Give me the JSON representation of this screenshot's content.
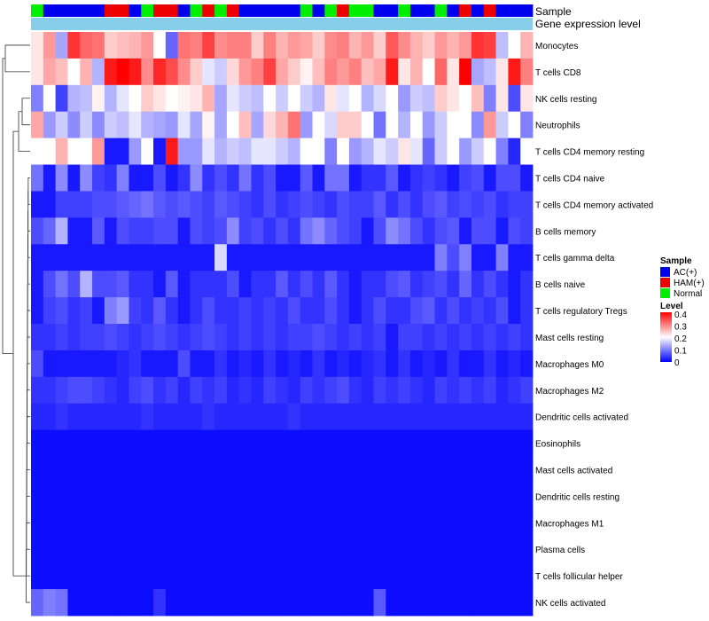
{
  "chart_data": {
    "type": "heatmap",
    "annotation_tracks": [
      "Sample",
      "Gene expression level"
    ],
    "rows": [
      "Monocytes",
      "T cells CD8",
      "NK cells resting",
      "Neutrophils",
      "T cells CD4 memory resting",
      "T cells CD4 naive",
      "T cells CD4 memory activated",
      "B cells memory",
      "T cells gamma delta",
      "B cells naive",
      "T cells regulatory  Tregs",
      "Mast cells resting",
      "Macrophages M0",
      "Macrophages M2",
      "Dendritic cells activated",
      "Eosinophils",
      "Mast cells activated",
      "Dendritic cells resting",
      "Macrophages M1",
      "Plasma cells",
      "T cells follicular helper",
      "NK cells activated"
    ],
    "samples": [
      "N",
      "A",
      "A",
      "A",
      "A",
      "A",
      "H",
      "H",
      "A",
      "N",
      "H",
      "H",
      "A",
      "N",
      "H",
      "N",
      "H",
      "A",
      "A",
      "A",
      "A",
      "A",
      "N",
      "A",
      "N",
      "H",
      "N",
      "N",
      "A",
      "A",
      "N",
      "A",
      "A",
      "N",
      "A",
      "H",
      "A",
      "H",
      "A",
      "A",
      "A"
    ],
    "values": [
      [
        0.22,
        0.28,
        0.13,
        0.36,
        0.32,
        0.31,
        0.24,
        0.25,
        0.26,
        0.28,
        0.2,
        0.08,
        0.31,
        0.3,
        0.35,
        0.29,
        0.3,
        0.3,
        0.24,
        0.3,
        0.26,
        0.28,
        0.27,
        0.24,
        0.29,
        0.3,
        0.26,
        0.28,
        0.24,
        0.33,
        0.29,
        0.26,
        0.24,
        0.28,
        0.26,
        0.28,
        0.36,
        0.35,
        0.15,
        0.2,
        0.26
      ],
      [
        0.22,
        0.27,
        0.25,
        0.2,
        0.26,
        0.14,
        0.38,
        0.4,
        0.38,
        0.29,
        0.37,
        0.34,
        0.29,
        0.24,
        0.18,
        0.16,
        0.23,
        0.28,
        0.3,
        0.35,
        0.27,
        0.24,
        0.21,
        0.25,
        0.3,
        0.28,
        0.3,
        0.25,
        0.27,
        0.38,
        0.22,
        0.26,
        0.2,
        0.32,
        0.22,
        0.4,
        0.13,
        0.15,
        0.22,
        0.38,
        0.3
      ],
      [
        0.1,
        0.2,
        0.05,
        0.14,
        0.15,
        0.21,
        0.14,
        0.18,
        0.2,
        0.24,
        0.22,
        0.2,
        0.21,
        0.22,
        0.26,
        0.13,
        0.18,
        0.16,
        0.15,
        0.2,
        0.16,
        0.2,
        0.16,
        0.14,
        0.22,
        0.18,
        0.2,
        0.14,
        0.17,
        0.2,
        0.12,
        0.16,
        0.15,
        0.24,
        0.22,
        0.2,
        0.25,
        0.1,
        0.22,
        0.06,
        0.22
      ],
      [
        0.27,
        0.12,
        0.16,
        0.11,
        0.16,
        0.11,
        0.16,
        0.15,
        0.18,
        0.14,
        0.13,
        0.12,
        0.18,
        0.13,
        0.21,
        0.13,
        0.2,
        0.25,
        0.13,
        0.23,
        0.26,
        0.31,
        0.12,
        0.2,
        0.17,
        0.24,
        0.24,
        0.2,
        0.09,
        0.2,
        0.14,
        0.2,
        0.12,
        0.16,
        0.2,
        0.2,
        0.11,
        0.28,
        0.16,
        0.2,
        0.1
      ],
      [
        0.2,
        0.2,
        0.26,
        0.2,
        0.2,
        0.28,
        0.02,
        0.02,
        0.12,
        0.2,
        0.02,
        0.38,
        0.12,
        0.12,
        0.18,
        0.14,
        0.16,
        0.15,
        0.18,
        0.18,
        0.16,
        0.14,
        0.2,
        0.2,
        0.1,
        0.2,
        0.12,
        0.14,
        0.18,
        0.16,
        0.22,
        0.18,
        0.08,
        0.16,
        0.2,
        0.12,
        0.16,
        0.2,
        0.1,
        0.03,
        0.2
      ],
      [
        0.09,
        0.02,
        0.11,
        0.02,
        0.11,
        0.05,
        0.04,
        0.1,
        0.02,
        0.02,
        0.06,
        0.02,
        0.04,
        0.11,
        0.04,
        0.06,
        0.04,
        0.09,
        0.04,
        0.06,
        0.02,
        0.02,
        0.07,
        0.02,
        0.09,
        0.09,
        0.02,
        0.04,
        0.04,
        0.07,
        0.02,
        0.04,
        0.05,
        0.04,
        0.02,
        0.05,
        0.06,
        0.02,
        0.06,
        0.06,
        0.02
      ],
      [
        0.02,
        0.02,
        0.05,
        0.05,
        0.05,
        0.06,
        0.06,
        0.07,
        0.08,
        0.09,
        0.07,
        0.06,
        0.07,
        0.06,
        0.05,
        0.07,
        0.06,
        0.05,
        0.04,
        0.06,
        0.04,
        0.05,
        0.06,
        0.05,
        0.04,
        0.06,
        0.05,
        0.05,
        0.07,
        0.04,
        0.06,
        0.04,
        0.06,
        0.07,
        0.05,
        0.06,
        0.05,
        0.06,
        0.04,
        0.05,
        0.05
      ],
      [
        0.06,
        0.08,
        0.14,
        0.02,
        0.02,
        0.07,
        0.02,
        0.06,
        0.05,
        0.05,
        0.06,
        0.06,
        0.02,
        0.06,
        0.05,
        0.06,
        0.11,
        0.05,
        0.06,
        0.04,
        0.06,
        0.04,
        0.09,
        0.11,
        0.08,
        0.06,
        0.05,
        0.02,
        0.06,
        0.11,
        0.09,
        0.06,
        0.04,
        0.06,
        0.07,
        0.02,
        0.06,
        0.06,
        0.02,
        0.06,
        0.05
      ],
      [
        0.02,
        0.02,
        0.02,
        0.02,
        0.02,
        0.02,
        0.02,
        0.02,
        0.02,
        0.02,
        0.02,
        0.02,
        0.02,
        0.02,
        0.02,
        0.17,
        0.02,
        0.02,
        0.02,
        0.02,
        0.02,
        0.02,
        0.02,
        0.02,
        0.02,
        0.02,
        0.02,
        0.02,
        0.02,
        0.02,
        0.02,
        0.02,
        0.02,
        0.1,
        0.06,
        0.1,
        0.02,
        0.02,
        0.1,
        0.02,
        0.02
      ],
      [
        0.02,
        0.06,
        0.09,
        0.06,
        0.14,
        0.06,
        0.06,
        0.07,
        0.04,
        0.04,
        0.02,
        0.07,
        0.02,
        0.04,
        0.04,
        0.04,
        0.06,
        0.02,
        0.04,
        0.04,
        0.07,
        0.04,
        0.06,
        0.04,
        0.07,
        0.04,
        0.02,
        0.04,
        0.04,
        0.06,
        0.07,
        0.04,
        0.05,
        0.06,
        0.04,
        0.08,
        0.04,
        0.06,
        0.04,
        0.02,
        0.04
      ],
      [
        0.02,
        0.05,
        0.06,
        0.04,
        0.05,
        0.02,
        0.1,
        0.12,
        0.05,
        0.04,
        0.07,
        0.04,
        0.02,
        0.04,
        0.06,
        0.04,
        0.04,
        0.05,
        0.04,
        0.05,
        0.04,
        0.06,
        0.04,
        0.04,
        0.06,
        0.04,
        0.02,
        0.04,
        0.06,
        0.04,
        0.04,
        0.06,
        0.07,
        0.04,
        0.06,
        0.04,
        0.05,
        0.04,
        0.06,
        0.02,
        0.04
      ],
      [
        0.04,
        0.04,
        0.05,
        0.04,
        0.05,
        0.05,
        0.06,
        0.05,
        0.04,
        0.05,
        0.06,
        0.05,
        0.04,
        0.05,
        0.06,
        0.05,
        0.04,
        0.05,
        0.04,
        0.05,
        0.04,
        0.05,
        0.05,
        0.06,
        0.05,
        0.04,
        0.05,
        0.04,
        0.05,
        0.02,
        0.05,
        0.05,
        0.04,
        0.05,
        0.04,
        0.05,
        0.04,
        0.05,
        0.04,
        0.05,
        0.04
      ],
      [
        0.06,
        0.02,
        0.02,
        0.02,
        0.02,
        0.02,
        0.02,
        0.03,
        0.04,
        0.02,
        0.02,
        0.02,
        0.06,
        0.02,
        0.02,
        0.04,
        0.02,
        0.03,
        0.02,
        0.04,
        0.02,
        0.03,
        0.02,
        0.04,
        0.02,
        0.03,
        0.02,
        0.03,
        0.04,
        0.02,
        0.04,
        0.02,
        0.03,
        0.02,
        0.04,
        0.02,
        0.02,
        0.04,
        0.02,
        0.03,
        0.02
      ],
      [
        0.04,
        0.04,
        0.05,
        0.06,
        0.06,
        0.05,
        0.04,
        0.03,
        0.05,
        0.06,
        0.04,
        0.05,
        0.03,
        0.05,
        0.04,
        0.05,
        0.03,
        0.04,
        0.03,
        0.05,
        0.04,
        0.03,
        0.05,
        0.04,
        0.05,
        0.06,
        0.04,
        0.03,
        0.05,
        0.04,
        0.05,
        0.04,
        0.03,
        0.05,
        0.04,
        0.05,
        0.04,
        0.05,
        0.03,
        0.04,
        0.05
      ],
      [
        0.03,
        0.03,
        0.04,
        0.03,
        0.03,
        0.03,
        0.03,
        0.03,
        0.03,
        0.04,
        0.03,
        0.03,
        0.03,
        0.03,
        0.04,
        0.03,
        0.03,
        0.03,
        0.03,
        0.03,
        0.03,
        0.04,
        0.03,
        0.03,
        0.03,
        0.03,
        0.03,
        0.03,
        0.03,
        0.03,
        0.03,
        0.03,
        0.03,
        0.03,
        0.03,
        0.03,
        0.03,
        0.03,
        0.03,
        0.03,
        0.03
      ],
      [
        0.01,
        0.01,
        0.01,
        0.01,
        0.01,
        0.01,
        0.01,
        0.01,
        0.01,
        0.01,
        0.01,
        0.01,
        0.01,
        0.01,
        0.01,
        0.01,
        0.01,
        0.01,
        0.01,
        0.01,
        0.01,
        0.01,
        0.01,
        0.01,
        0.01,
        0.01,
        0.01,
        0.01,
        0.01,
        0.01,
        0.01,
        0.01,
        0.01,
        0.01,
        0.01,
        0.01,
        0.01,
        0.01,
        0.01,
        0.01,
        0.01
      ],
      [
        0.01,
        0.01,
        0.01,
        0.01,
        0.01,
        0.01,
        0.01,
        0.01,
        0.01,
        0.01,
        0.01,
        0.01,
        0.01,
        0.01,
        0.01,
        0.01,
        0.01,
        0.01,
        0.01,
        0.01,
        0.01,
        0.01,
        0.01,
        0.01,
        0.01,
        0.01,
        0.01,
        0.01,
        0.01,
        0.01,
        0.01,
        0.01,
        0.01,
        0.01,
        0.01,
        0.01,
        0.01,
        0.01,
        0.01,
        0.01,
        0.01
      ],
      [
        0.01,
        0.01,
        0.01,
        0.01,
        0.01,
        0.01,
        0.01,
        0.01,
        0.01,
        0.01,
        0.01,
        0.01,
        0.01,
        0.01,
        0.01,
        0.01,
        0.01,
        0.01,
        0.01,
        0.01,
        0.01,
        0.01,
        0.01,
        0.01,
        0.01,
        0.01,
        0.01,
        0.01,
        0.01,
        0.01,
        0.01,
        0.01,
        0.01,
        0.01,
        0.01,
        0.01,
        0.01,
        0.01,
        0.01,
        0.01,
        0.01
      ],
      [
        0.01,
        0.01,
        0.01,
        0.01,
        0.01,
        0.01,
        0.01,
        0.01,
        0.01,
        0.01,
        0.01,
        0.01,
        0.01,
        0.01,
        0.01,
        0.01,
        0.01,
        0.01,
        0.01,
        0.01,
        0.01,
        0.01,
        0.01,
        0.01,
        0.01,
        0.01,
        0.01,
        0.01,
        0.01,
        0.01,
        0.01,
        0.01,
        0.01,
        0.01,
        0.01,
        0.01,
        0.01,
        0.01,
        0.01,
        0.01,
        0.01
      ],
      [
        0.01,
        0.01,
        0.01,
        0.01,
        0.01,
        0.01,
        0.01,
        0.01,
        0.01,
        0.01,
        0.01,
        0.01,
        0.01,
        0.01,
        0.01,
        0.01,
        0.01,
        0.01,
        0.01,
        0.01,
        0.01,
        0.01,
        0.01,
        0.01,
        0.01,
        0.01,
        0.01,
        0.01,
        0.01,
        0.01,
        0.01,
        0.01,
        0.01,
        0.01,
        0.01,
        0.01,
        0.01,
        0.01,
        0.01,
        0.01,
        0.01
      ],
      [
        0.01,
        0.01,
        0.01,
        0.01,
        0.01,
        0.01,
        0.01,
        0.01,
        0.01,
        0.01,
        0.01,
        0.01,
        0.01,
        0.01,
        0.01,
        0.01,
        0.01,
        0.01,
        0.01,
        0.01,
        0.01,
        0.01,
        0.01,
        0.01,
        0.01,
        0.01,
        0.01,
        0.01,
        0.01,
        0.01,
        0.01,
        0.01,
        0.01,
        0.01,
        0.01,
        0.01,
        0.01,
        0.01,
        0.01,
        0.01,
        0.01
      ],
      [
        0.08,
        0.1,
        0.09,
        0.01,
        0.01,
        0.01,
        0.01,
        0.01,
        0.01,
        0.01,
        0.04,
        0.01,
        0.01,
        0.01,
        0.01,
        0.01,
        0.01,
        0.01,
        0.01,
        0.01,
        0.01,
        0.01,
        0.01,
        0.01,
        0.01,
        0.01,
        0.01,
        0.01,
        0.07,
        0.01,
        0.01,
        0.01,
        0.01,
        0.01,
        0.01,
        0.01,
        0.01,
        0.01,
        0.01,
        0.01,
        0.01
      ]
    ],
    "legend": {
      "sample_title": "Sample",
      "sample_categories": [
        {
          "key": "A",
          "label": "AC(+)",
          "color": "#0000ee"
        },
        {
          "key": "H",
          "label": "HAM(+)",
          "color": "#ee0000"
        },
        {
          "key": "N",
          "label": "Normal",
          "color": "#00ee00"
        }
      ],
      "level_title": "Level",
      "level_ticks": [
        "0.4",
        "0.3",
        "0.2",
        "0.1",
        "0"
      ],
      "range": [
        0,
        0.4
      ],
      "colors": {
        "low": "#0000ff",
        "mid": "#ffffff",
        "high": "#ff0000"
      }
    },
    "expression_track_color": "#87ceeb",
    "dendrogram": "row hierarchical clustering tree"
  }
}
